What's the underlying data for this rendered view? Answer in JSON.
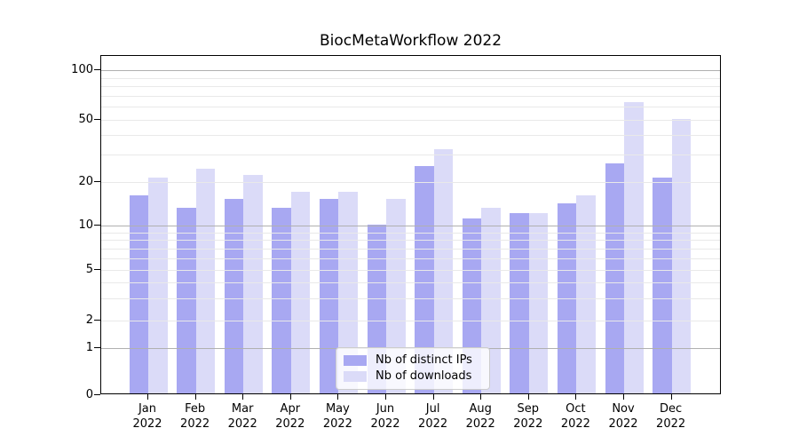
{
  "title": "BiocMetaWorkflow 2022",
  "colors": {
    "ips_bar": "#a8a8f2",
    "downloads_bar": "#dbdbf8",
    "grid_major": "#b0b0b0",
    "grid_minor": "#e9e9e9",
    "axis_spine": "#000000",
    "background": "#ffffff"
  },
  "legend": {
    "items": [
      {
        "label": "Nb of distinct IPs",
        "series": "ips"
      },
      {
        "label": "Nb of downloads",
        "series": "downloads"
      }
    ]
  },
  "y_axis": {
    "tick_labels": [
      "100",
      "50",
      "20",
      "10",
      "5",
      "2",
      "1",
      "0"
    ],
    "tick_values": [
      100,
      50,
      20,
      10,
      5,
      2,
      1,
      0
    ]
  },
  "x_axis": {
    "months": [
      "Jan",
      "Feb",
      "Mar",
      "Apr",
      "May",
      "Jun",
      "Jul",
      "Aug",
      "Sep",
      "Oct",
      "Nov",
      "Dec"
    ],
    "year": "2022"
  },
  "chart_data": {
    "type": "bar",
    "title": "BiocMetaWorkflow 2022",
    "categories": [
      "Jan 2022",
      "Feb 2022",
      "Mar 2022",
      "Apr 2022",
      "May 2022",
      "Jun 2022",
      "Jul 2022",
      "Aug 2022",
      "Sep 2022",
      "Oct 2022",
      "Nov 2022",
      "Dec 2022"
    ],
    "series": [
      {
        "name": "Nb of distinct IPs",
        "color": "#a8a8f2",
        "values": [
          16,
          13,
          15,
          13,
          15,
          10,
          25,
          11,
          12,
          14,
          26,
          21
        ]
      },
      {
        "name": "Nb of downloads",
        "color": "#dbdbf8",
        "values": [
          21,
          24,
          22,
          17,
          17,
          15,
          32,
          13,
          12,
          16,
          63,
          50
        ]
      }
    ],
    "xlabel": "",
    "ylabel": "",
    "yscale": "symlog",
    "yticks": [
      0,
      1,
      2,
      5,
      10,
      20,
      50,
      100
    ],
    "ylim": [
      0,
      130
    ],
    "grid": "horizontal, major and minor, drawn over bars",
    "legend_position": "lower center"
  }
}
